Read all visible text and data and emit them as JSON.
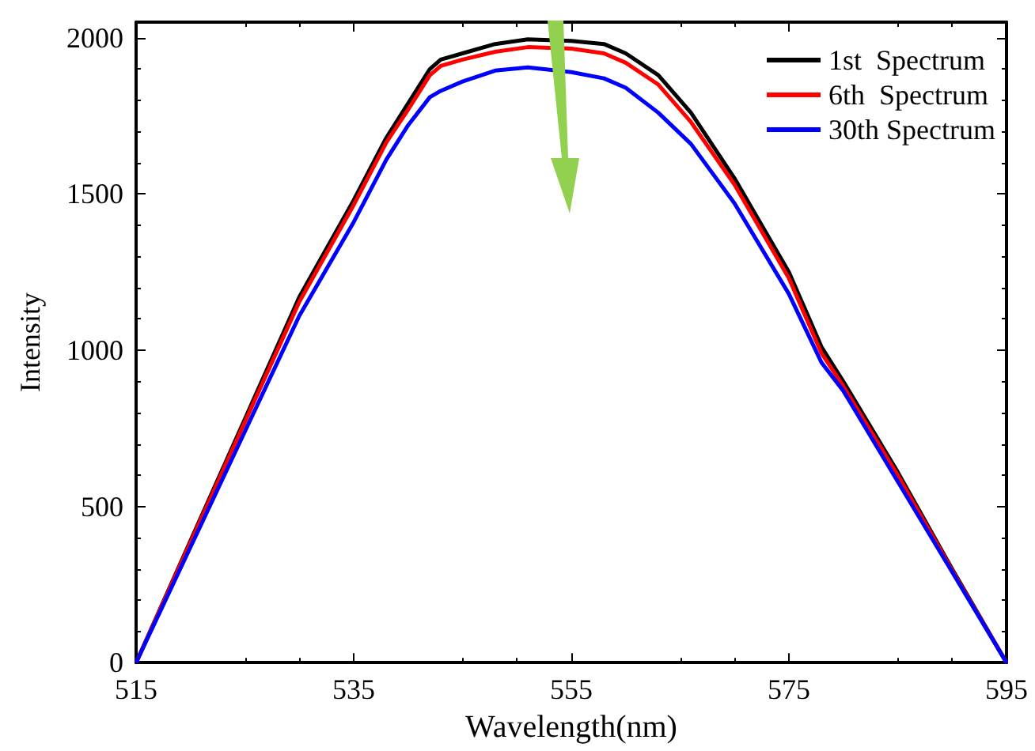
{
  "chart_data": {
    "type": "line",
    "xlabel": "Wavelength(nm)",
    "ylabel": "Intensity",
    "xlim": [
      515,
      595
    ],
    "xticks": [
      515,
      535,
      555,
      575,
      595
    ],
    "ylim": [
      0,
      2050
    ],
    "yticks": [
      0,
      500,
      1000,
      1500,
      2000
    ],
    "grid": false,
    "legend": "top right",
    "marker": "none",
    "line_style": "solid",
    "x": [
      515,
      520,
      525,
      530,
      535,
      538,
      540,
      542,
      543,
      545,
      548,
      551,
      555,
      558,
      560,
      563,
      566,
      570,
      575,
      578,
      580,
      585,
      590,
      595
    ],
    "series": [
      {
        "name": "1st  Spectrum",
        "color": "#000000",
        "values": [
          0,
          390,
          780,
          1170,
          1480,
          1680,
          1790,
          1900,
          1930,
          1950,
          1980,
          1995,
          1990,
          1980,
          1950,
          1880,
          1760,
          1550,
          1250,
          1010,
          900,
          610,
          300,
          0
        ]
      },
      {
        "name": "6th  Spectrum",
        "color": "#ff0000",
        "values": [
          0,
          385,
          770,
          1155,
          1465,
          1665,
          1770,
          1880,
          1910,
          1930,
          1955,
          1970,
          1965,
          1950,
          1920,
          1850,
          1730,
          1530,
          1230,
          990,
          885,
          600,
          295,
          0
        ]
      },
      {
        "name": "30th Spectrum",
        "color": "#0000ff",
        "values": [
          0,
          370,
          740,
          1110,
          1410,
          1610,
          1720,
          1810,
          1830,
          1860,
          1895,
          1905,
          1890,
          1870,
          1840,
          1760,
          1660,
          1470,
          1180,
          960,
          870,
          580,
          290,
          0
        ]
      }
    ]
  }
}
